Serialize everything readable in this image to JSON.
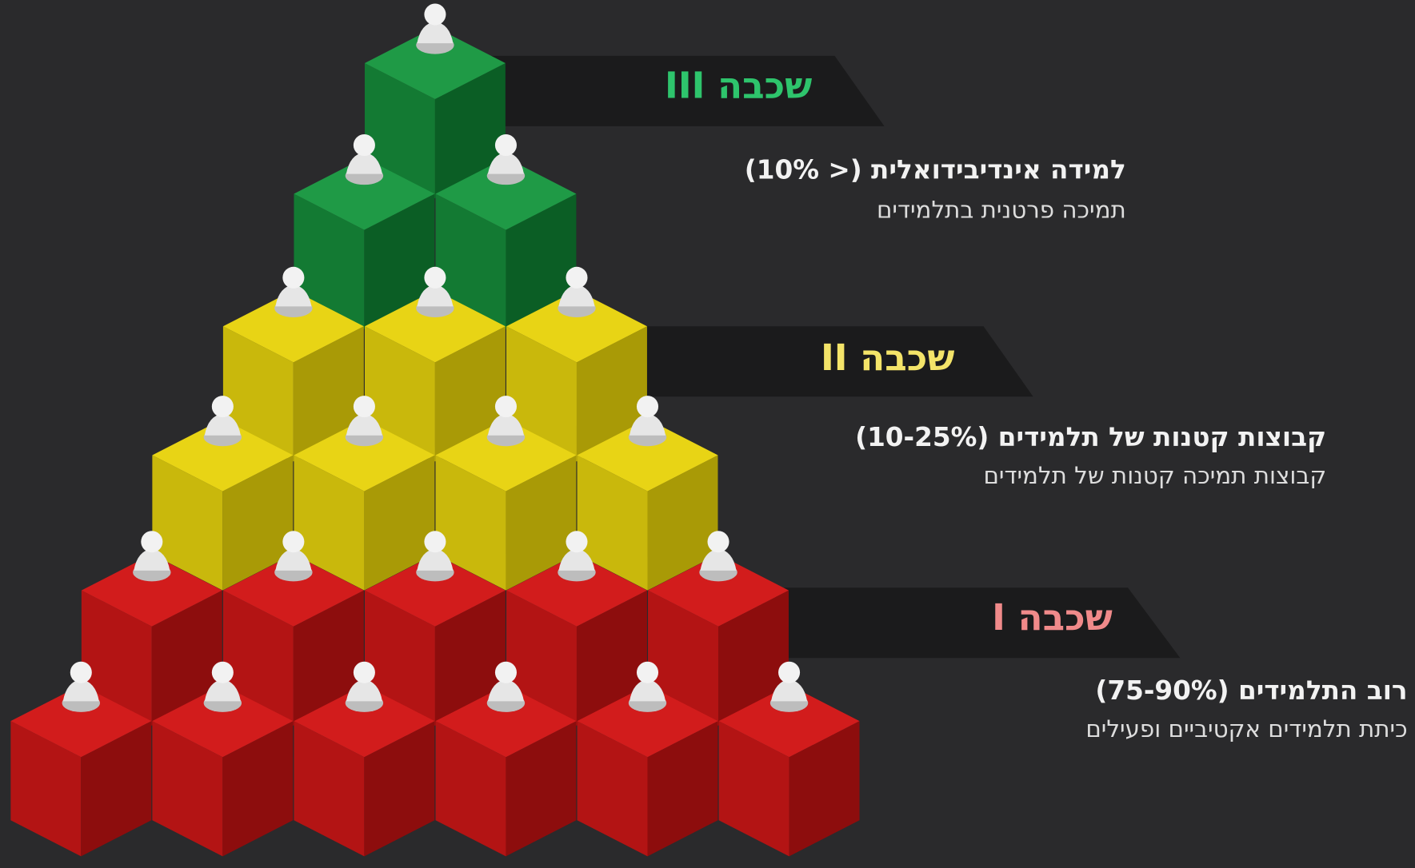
{
  "tiers": [
    {
      "label": "שכבה III",
      "title": "למידה אינדיבידואלית (< 10%)",
      "subtitle": "תמיכה פרטנית בתלמידים"
    },
    {
      "label": "שכבה II",
      "title": "קבוצות קטנות של תלמידים (10-25%)",
      "subtitle": "קבוצות תמיכה קטנות של תלמידים"
    },
    {
      "label": "שכבה I",
      "title": "רוב התלמידים (75-90%)",
      "subtitle": "כיתת תלמידים אקטיביים ופעילים"
    }
  ]
}
